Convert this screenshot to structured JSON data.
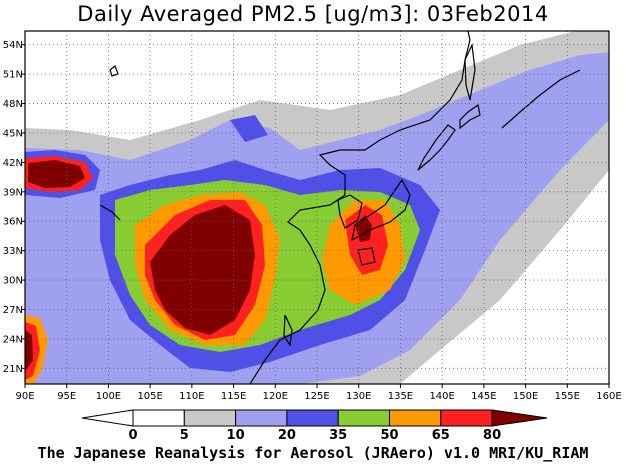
{
  "title": "Daily Averaged PM2.5 [ug/m3]: 03Feb2014",
  "footer": "The Japanese Reanalysis for Aerosol (JRAero) v1.0 MRI/KU_RIAM",
  "map": {
    "lon_labels": [
      "90E",
      "95E",
      "100E",
      "105E",
      "110E",
      "115E",
      "120E",
      "125E",
      "130E",
      "135E",
      "140E",
      "145E",
      "150E",
      "155E",
      "160E"
    ],
    "lat_labels": [
      "54N",
      "51N",
      "48N",
      "45N",
      "42N",
      "39N",
      "36N",
      "33N",
      "30N",
      "27N",
      "24N",
      "21N"
    ],
    "grid": "dotted"
  },
  "colorbar": {
    "labels": [
      "0",
      "5",
      "10",
      "20",
      "35",
      "50",
      "65",
      "80"
    ],
    "colors": [
      "#ffffff",
      "#c8c8c8",
      "#a0a0f0",
      "#5050e8",
      "#88cc33",
      "#ff9900",
      "#ff2020",
      "#800000"
    ]
  }
}
